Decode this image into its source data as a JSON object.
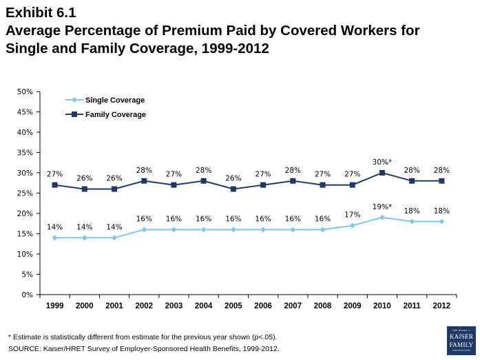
{
  "header": {
    "exhibit": "Exhibit 6.1",
    "title_line1": "Average Percentage of Premium Paid by Covered Workers for",
    "title_line2": "Single and Family Coverage, 1999-2012"
  },
  "footnotes": {
    "note": "* Estimate is statistically different from estimate for the previous year shown (p<.05).",
    "source": "SOURCE:  Kaiser/HRET Survey of Employer-Sponsored Health Benefits, 1999-2012."
  },
  "logo": {
    "line1": "THE HENRY J.",
    "line2": "KAISER",
    "line3": "FAMILY",
    "line4": "FOUNDATION"
  },
  "chart_data": {
    "type": "line",
    "categories": [
      "1999",
      "2000",
      "2001",
      "2002",
      "2003",
      "2004",
      "2005",
      "2006",
      "2007",
      "2008",
      "2009",
      "2010",
      "2011",
      "2012"
    ],
    "series": [
      {
        "name": "Single Coverage",
        "color": "#7ec8e8",
        "marker": "diamond",
        "values": [
          14,
          14,
          14,
          16,
          16,
          16,
          16,
          16,
          16,
          16,
          17,
          19,
          18,
          18
        ],
        "labels": [
          "14%",
          "14%",
          "14%",
          "16%",
          "16%",
          "16%",
          "16%",
          "16%",
          "16%",
          "16%",
          "17%",
          "19%*",
          "18%",
          "18%"
        ]
      },
      {
        "name": "Family Coverage",
        "color": "#1f3864",
        "marker": "square",
        "values": [
          27,
          26,
          26,
          28,
          27,
          28,
          26,
          27,
          28,
          27,
          27,
          30,
          28,
          28
        ],
        "labels": [
          "27%",
          "26%",
          "26%",
          "28%",
          "27%",
          "28%",
          "26%",
          "27%",
          "28%",
          "27%",
          "27%",
          "30%*",
          "28%",
          "28%"
        ]
      }
    ],
    "ylim": [
      0,
      50
    ],
    "yticks": [
      "0%",
      "5%",
      "10%",
      "15%",
      "20%",
      "25%",
      "30%",
      "35%",
      "40%",
      "45%",
      "50%"
    ],
    "grid": false,
    "legend_position": "top-left"
  }
}
